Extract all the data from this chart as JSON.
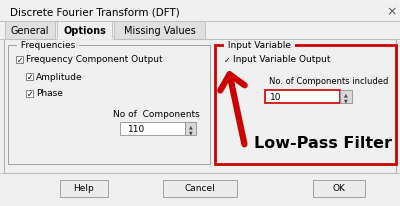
{
  "title": "Discrete Fourier Transform (DFT)",
  "bg_color": "#f0f0f0",
  "white": "#ffffff",
  "tab_active": "Options",
  "tabs": [
    "General",
    "Options",
    "Missing Values"
  ],
  "freq_group_label": "Frequencies",
  "freq_items": [
    "Frequency Component Output",
    "Amplitude",
    "Phase"
  ],
  "no_components_label": "No of  Components",
  "no_components_value": "110",
  "input_var_label": "Input Variable",
  "input_var_checkbox": "Input Variable Output",
  "no_components_included": "No. of Components included",
  "input_value": "10",
  "lowpass_text": "Low-Pass Filter",
  "arrow_color": "#cc0000",
  "highlight_border": "#cc0000",
  "buttons": [
    "Help",
    "Cancel",
    "OK"
  ],
  "title_fontsize": 7.5,
  "label_fontsize": 6.5,
  "group_fontsize": 6.5,
  "lowpass_fontsize": 11.5,
  "tab_fontsize": 7.0
}
